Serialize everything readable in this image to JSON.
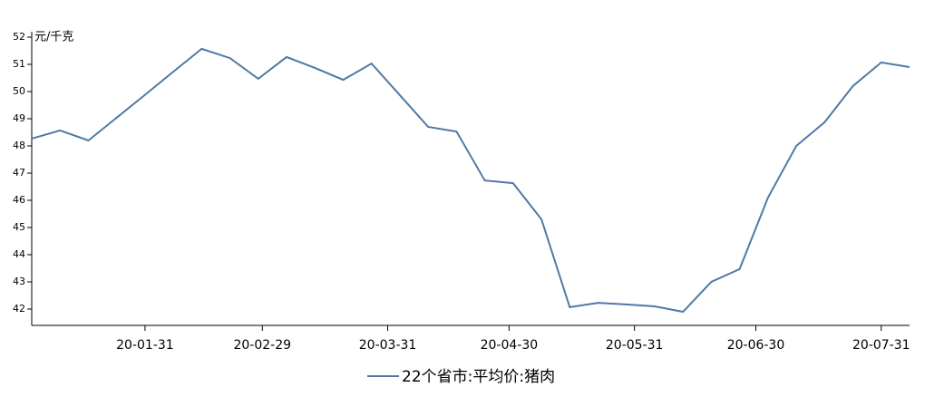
{
  "chart_data": {
    "type": "line",
    "y_label": "元/千克",
    "x": [
      "20-01-03",
      "20-01-10",
      "20-01-17",
      "20-01-24",
      "20-01-31",
      "20-02-07",
      "20-02-14",
      "20-02-21",
      "20-02-28",
      "20-03-06",
      "20-03-13",
      "20-03-20",
      "20-03-27",
      "20-04-03",
      "20-04-10",
      "20-04-17",
      "20-04-24",
      "20-05-01",
      "20-05-08",
      "20-05-15",
      "20-05-22",
      "20-05-29",
      "20-06-05",
      "20-06-12",
      "20-06-19",
      "20-06-26",
      "20-07-03",
      "20-07-10",
      "20-07-17",
      "20-07-24",
      "20-07-31",
      "20-08-07"
    ],
    "series": [
      {
        "name": "22个省市:平均价:猪肉",
        "color": "#4f79a4",
        "values": [
          48.27,
          48.57,
          48.2,
          49.04,
          49.88,
          50.73,
          51.57,
          51.23,
          50.47,
          51.27,
          50.87,
          50.43,
          51.03,
          49.87,
          48.7,
          48.53,
          46.73,
          46.63,
          45.3,
          42.07,
          42.23,
          42.17,
          42.1,
          41.9,
          43.0,
          43.47,
          46.1,
          48.0,
          48.87,
          50.2,
          51.07,
          50.9
        ]
      }
    ],
    "xlim": [
      "20-01-03",
      "20-08-07"
    ],
    "xticks": [
      "20-01-31",
      "20-02-29",
      "20-03-31",
      "20-04-30",
      "20-05-31",
      "20-06-30",
      "20-07-31"
    ],
    "ylim": [
      41.4,
      52
    ],
    "yticks": [
      42,
      43,
      44,
      45,
      46,
      47,
      48,
      49,
      50,
      51,
      52
    ]
  }
}
